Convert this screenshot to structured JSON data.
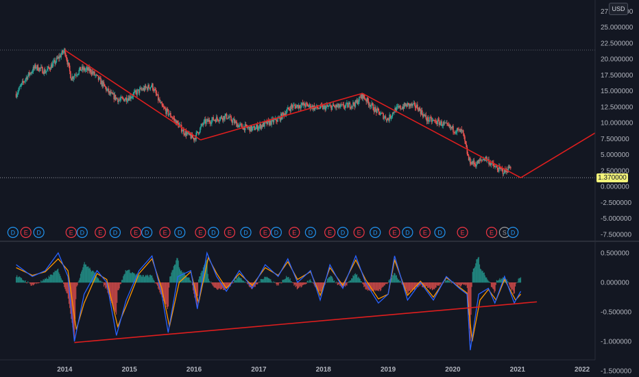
{
  "currency_badge": "USD",
  "last_price_label": "1.370000",
  "colors": {
    "background": "#131722",
    "up": "#26a69a",
    "down": "#ef5350",
    "trend_line": "#e01e1e",
    "macd_line": "#2962ff",
    "signal_line": "#ff9800",
    "event_dividend": "#2196f3",
    "event_earnings": "#f23645",
    "event_split": "#9e9e9e"
  },
  "chart_data": [
    {
      "type": "candlestick",
      "name": "price",
      "y_ticks": [
        "27.500000",
        "25.000000",
        "22.500000",
        "20.000000",
        "17.500000",
        "15.000000",
        "12.500000",
        "10.000000",
        "7.500000",
        "5.000000",
        "2.500000",
        "0.000000",
        "-2.500000",
        "-5.000000",
        "-7.500000"
      ],
      "ylim": [
        -7.5,
        27.5
      ],
      "grid": false,
      "last_price": 1.37,
      "horizontal_level": 21.4,
      "ohlc_path": [
        [
          2013.25,
          14.5
        ],
        [
          2013.4,
          17.0
        ],
        [
          2013.55,
          18.8
        ],
        [
          2013.7,
          18.0
        ],
        [
          2013.85,
          19.5
        ],
        [
          2014.0,
          21.4
        ],
        [
          2014.1,
          17.0
        ],
        [
          2014.25,
          18.4
        ],
        [
          2014.4,
          18.2
        ],
        [
          2014.55,
          16.5
        ],
        [
          2014.7,
          14.5
        ],
        [
          2014.85,
          13.5
        ],
        [
          2015.0,
          14.0
        ],
        [
          2015.15,
          15.0
        ],
        [
          2015.35,
          15.8
        ],
        [
          2015.5,
          12.5
        ],
        [
          2015.65,
          11.0
        ],
        [
          2015.85,
          8.5
        ],
        [
          2016.0,
          7.5
        ],
        [
          2016.15,
          10.0
        ],
        [
          2016.3,
          10.5
        ],
        [
          2016.5,
          11.0
        ],
        [
          2016.7,
          9.5
        ],
        [
          2016.9,
          9.0
        ],
        [
          2017.1,
          9.8
        ],
        [
          2017.3,
          10.5
        ],
        [
          2017.5,
          12.5
        ],
        [
          2017.7,
          12.8
        ],
        [
          2017.9,
          12.3
        ],
        [
          2018.1,
          12.5
        ],
        [
          2018.3,
          12.5
        ],
        [
          2018.5,
          13.0
        ],
        [
          2018.6,
          14.3
        ],
        [
          2018.8,
          12.0
        ],
        [
          2019.0,
          10.5
        ],
        [
          2019.1,
          12.0
        ],
        [
          2019.3,
          12.8
        ],
        [
          2019.45,
          12.5
        ],
        [
          2019.6,
          10.5
        ],
        [
          2019.8,
          10.0
        ],
        [
          2020.0,
          9.0
        ],
        [
          2020.15,
          8.5
        ],
        [
          2020.25,
          4.0
        ],
        [
          2020.35,
          3.5
        ],
        [
          2020.5,
          4.5
        ],
        [
          2020.65,
          3.0
        ],
        [
          2020.8,
          2.3
        ],
        [
          2020.9,
          3.2
        ]
      ],
      "trend_lines": [
        [
          [
            2014.0,
            21.4
          ],
          [
            2016.1,
            7.3
          ]
        ],
        [
          [
            2016.1,
            7.3
          ],
          [
            2018.6,
            14.6
          ]
        ],
        [
          [
            2018.6,
            14.6
          ],
          [
            2021.05,
            1.37
          ]
        ],
        [
          [
            2021.05,
            1.37
          ],
          [
            2022.2,
            8.4
          ]
        ]
      ],
      "events": [
        {
          "x": 2013.2,
          "label": "D"
        },
        {
          "x": 2013.4,
          "label": "E"
        },
        {
          "x": 2013.6,
          "label": "D"
        },
        {
          "x": 2014.1,
          "label": "E"
        },
        {
          "x": 2014.27,
          "label": "D"
        },
        {
          "x": 2014.55,
          "label": "E"
        },
        {
          "x": 2014.78,
          "label": "D"
        },
        {
          "x": 2015.1,
          "label": "E"
        },
        {
          "x": 2015.27,
          "label": "D"
        },
        {
          "x": 2015.55,
          "label": "E"
        },
        {
          "x": 2015.78,
          "label": "D"
        },
        {
          "x": 2016.1,
          "label": "E"
        },
        {
          "x": 2016.3,
          "label": "D"
        },
        {
          "x": 2016.55,
          "label": "E"
        },
        {
          "x": 2016.8,
          "label": "D"
        },
        {
          "x": 2017.1,
          "label": "E"
        },
        {
          "x": 2017.27,
          "label": "D"
        },
        {
          "x": 2017.55,
          "label": "E"
        },
        {
          "x": 2017.8,
          "label": "D"
        },
        {
          "x": 2018.1,
          "label": "E"
        },
        {
          "x": 2018.3,
          "label": "D"
        },
        {
          "x": 2018.55,
          "label": "E"
        },
        {
          "x": 2018.8,
          "label": "D"
        },
        {
          "x": 2019.1,
          "label": "E"
        },
        {
          "x": 2019.3,
          "label": "D"
        },
        {
          "x": 2019.57,
          "label": "E"
        },
        {
          "x": 2019.8,
          "label": "D"
        },
        {
          "x": 2020.15,
          "label": "E"
        },
        {
          "x": 2020.6,
          "label": "E"
        },
        {
          "x": 2020.8,
          "label": "S"
        },
        {
          "x": 2020.93,
          "label": "D"
        }
      ]
    },
    {
      "type": "macd",
      "name": "oscillator",
      "y_ticks": [
        "0.500000",
        "0.000000",
        "-0.500000",
        "-1.000000",
        "-1.500000"
      ],
      "ylim": [
        -1.5,
        0.5
      ],
      "grid": false,
      "macd_path": [
        [
          2013.25,
          0.3
        ],
        [
          2013.5,
          0.1
        ],
        [
          2013.7,
          0.2
        ],
        [
          2013.9,
          0.5
        ],
        [
          2014.05,
          0.1
        ],
        [
          2014.15,
          -1.0
        ],
        [
          2014.3,
          -0.2
        ],
        [
          2014.5,
          0.2
        ],
        [
          2014.65,
          0.0
        ],
        [
          2014.8,
          -0.9
        ],
        [
          2014.95,
          -0.3
        ],
        [
          2015.15,
          0.2
        ],
        [
          2015.35,
          0.45
        ],
        [
          2015.5,
          -0.2
        ],
        [
          2015.6,
          -0.85
        ],
        [
          2015.75,
          0.1
        ],
        [
          2015.95,
          0.2
        ],
        [
          2016.05,
          -0.45
        ],
        [
          2016.2,
          0.5
        ],
        [
          2016.35,
          0.1
        ],
        [
          2016.5,
          -0.15
        ],
        [
          2016.7,
          0.2
        ],
        [
          2016.9,
          -0.1
        ],
        [
          2017.1,
          0.3
        ],
        [
          2017.3,
          0.1
        ],
        [
          2017.45,
          0.4
        ],
        [
          2017.6,
          0.0
        ],
        [
          2017.8,
          0.2
        ],
        [
          2017.95,
          -0.3
        ],
        [
          2018.1,
          0.3
        ],
        [
          2018.3,
          -0.1
        ],
        [
          2018.5,
          0.45
        ],
        [
          2018.65,
          0.0
        ],
        [
          2018.85,
          -0.35
        ],
        [
          2019.0,
          -0.2
        ],
        [
          2019.1,
          0.45
        ],
        [
          2019.3,
          -0.3
        ],
        [
          2019.5,
          0.0
        ],
        [
          2019.7,
          -0.3
        ],
        [
          2019.9,
          0.1
        ],
        [
          2020.1,
          -0.1
        ],
        [
          2020.22,
          -0.2
        ],
        [
          2020.27,
          -1.15
        ],
        [
          2020.4,
          -0.2
        ],
        [
          2020.55,
          -0.1
        ],
        [
          2020.65,
          -0.35
        ],
        [
          2020.8,
          0.1
        ],
        [
          2020.95,
          -0.35
        ],
        [
          2021.05,
          -0.15
        ]
      ],
      "signal_path": [
        [
          2013.25,
          0.25
        ],
        [
          2013.5,
          0.12
        ],
        [
          2013.7,
          0.18
        ],
        [
          2013.9,
          0.4
        ],
        [
          2014.05,
          0.2
        ],
        [
          2014.18,
          -0.8
        ],
        [
          2014.3,
          -0.35
        ],
        [
          2014.5,
          0.15
        ],
        [
          2014.65,
          0.05
        ],
        [
          2014.82,
          -0.75
        ],
        [
          2014.95,
          -0.4
        ],
        [
          2015.15,
          0.15
        ],
        [
          2015.35,
          0.4
        ],
        [
          2015.5,
          -0.1
        ],
        [
          2015.62,
          -0.75
        ],
        [
          2015.77,
          0.0
        ],
        [
          2015.95,
          0.18
        ],
        [
          2016.07,
          -0.35
        ],
        [
          2016.22,
          0.42
        ],
        [
          2016.35,
          0.15
        ],
        [
          2016.5,
          -0.1
        ],
        [
          2016.7,
          0.15
        ],
        [
          2016.9,
          -0.05
        ],
        [
          2017.1,
          0.25
        ],
        [
          2017.3,
          0.12
        ],
        [
          2017.45,
          0.35
        ],
        [
          2017.6,
          0.05
        ],
        [
          2017.8,
          0.18
        ],
        [
          2017.95,
          -0.22
        ],
        [
          2018.1,
          0.25
        ],
        [
          2018.3,
          -0.05
        ],
        [
          2018.5,
          0.38
        ],
        [
          2018.65,
          0.05
        ],
        [
          2018.85,
          -0.28
        ],
        [
          2019.0,
          -0.2
        ],
        [
          2019.1,
          0.38
        ],
        [
          2019.3,
          -0.22
        ],
        [
          2019.5,
          0.02
        ],
        [
          2019.7,
          -0.25
        ],
        [
          2019.9,
          0.08
        ],
        [
          2020.1,
          -0.08
        ],
        [
          2020.22,
          -0.18
        ],
        [
          2020.3,
          -1.0
        ],
        [
          2020.42,
          -0.3
        ],
        [
          2020.55,
          -0.12
        ],
        [
          2020.67,
          -0.3
        ],
        [
          2020.8,
          0.05
        ],
        [
          2020.97,
          -0.3
        ],
        [
          2021.05,
          -0.2
        ]
      ],
      "trend_line": [
        [
          2014.15,
          -1.02
        ],
        [
          2021.3,
          -0.33
        ]
      ]
    }
  ],
  "time_axis": {
    "ticks": [
      {
        "x": 2014,
        "label": "2014"
      },
      {
        "x": 2015,
        "label": "2015"
      },
      {
        "x": 2016,
        "label": "2016"
      },
      {
        "x": 2017,
        "label": "2017"
      },
      {
        "x": 2018,
        "label": "2018"
      },
      {
        "x": 2019,
        "label": "2019"
      },
      {
        "x": 2020,
        "label": "2020"
      },
      {
        "x": 2021,
        "label": "2021"
      },
      {
        "x": 2022,
        "label": "2022"
      }
    ]
  }
}
